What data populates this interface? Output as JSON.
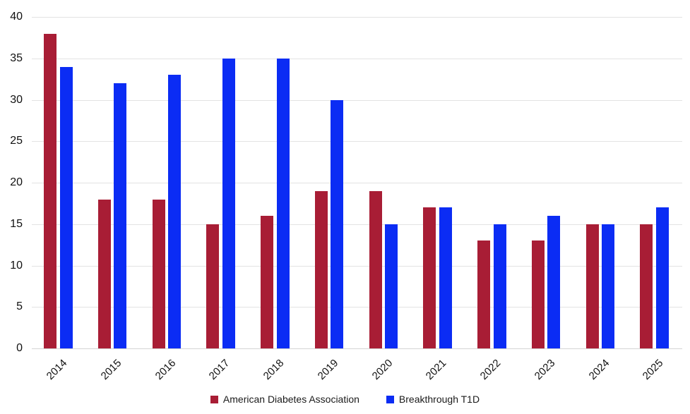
{
  "chart_data": {
    "type": "bar",
    "title": "",
    "xlabel": "",
    "ylabel": "",
    "categories": [
      "2014",
      "2015",
      "2016",
      "2017",
      "2018",
      "2019",
      "2020",
      "2021",
      "2022",
      "2023",
      "2024",
      "2025"
    ],
    "series": [
      {
        "name": "American Diabetes Association",
        "color": "#A81D35",
        "values": [
          38,
          18,
          18,
          15,
          16,
          19,
          19,
          17,
          13,
          13,
          15,
          15
        ]
      },
      {
        "name": "Breakthrough T1D",
        "color": "#0B2CF4",
        "values": [
          34,
          32,
          33,
          35,
          35,
          30,
          15,
          17,
          15,
          16,
          15,
          17
        ]
      }
    ],
    "ylim": [
      0,
      40
    ],
    "ytick_interval": 5,
    "ytick_labels": [
      "0",
      "5",
      "10",
      "15",
      "20",
      "25",
      "30",
      "35",
      "40"
    ],
    "grid": true,
    "legend_position": "bottom-center"
  },
  "colors": {
    "background": "#FFFFFF",
    "gridline": "#E3E3E3",
    "baseline": "#D4D4D4",
    "axis_text": "#111111",
    "legend_text": "#1A1A1A"
  }
}
